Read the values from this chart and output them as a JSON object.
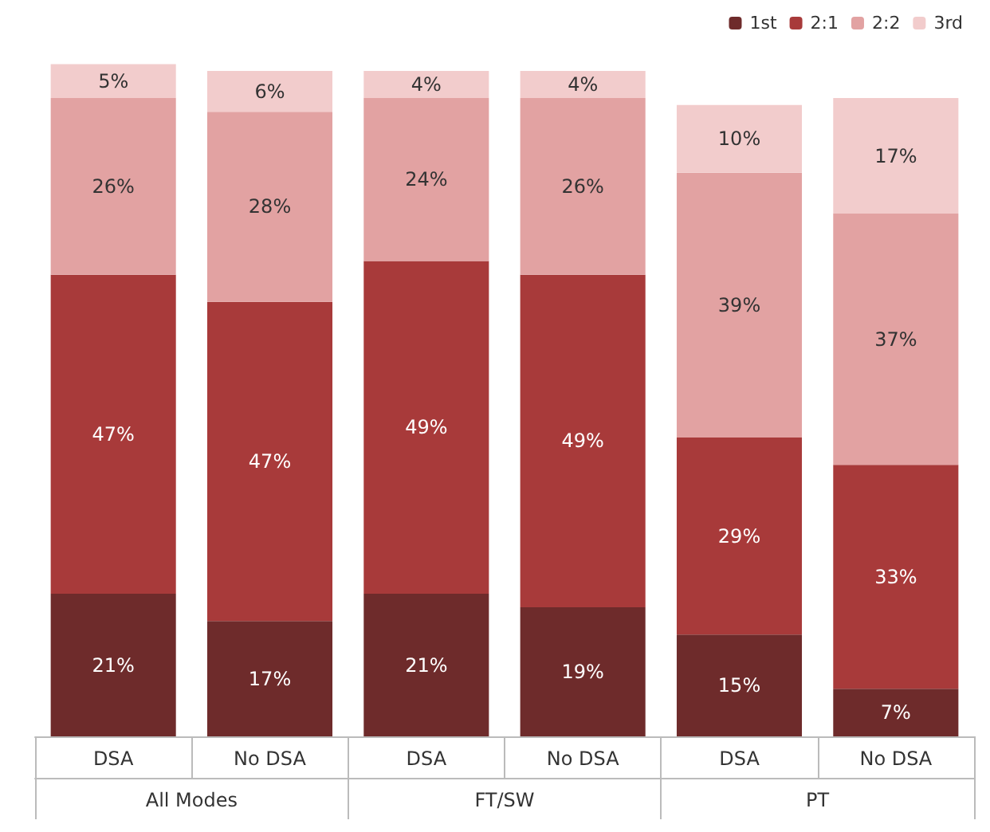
{
  "chart_data": {
    "type": "bar",
    "stacked": true,
    "legend": "top right",
    "categories": [
      "DSA",
      "No DSA",
      "DSA",
      "No DSA",
      "DSA",
      "No DSA"
    ],
    "annotations": [
      "All Modes",
      "FT/SW",
      "PT"
    ],
    "series": [
      {
        "name": "1st",
        "color": "#6e2b2b",
        "values": [
          21,
          17,
          21,
          19,
          15,
          7
        ],
        "value_labels": [
          "21%",
          "17%",
          "21%",
          "19%",
          "15%",
          "7%"
        ]
      },
      {
        "name": "2:1",
        "color": "#a83a3a",
        "values": [
          47,
          47,
          49,
          49,
          29,
          33
        ],
        "value_labels": [
          "47%",
          "47%",
          "49%",
          "49%",
          "29%",
          "33%"
        ]
      },
      {
        "name": "2:2",
        "color": "#e2a2a2",
        "values": [
          26,
          28,
          24,
          26,
          39,
          37
        ],
        "value_labels": [
          "26%",
          "28%",
          "24%",
          "26%",
          "39%",
          "37%"
        ]
      },
      {
        "name": "3rd",
        "color": "#f2cccc",
        "values": [
          5,
          6,
          4,
          4,
          10,
          17
        ],
        "value_labels": [
          "5%",
          "6%",
          "4%",
          "4%",
          "10%",
          "17%"
        ]
      }
    ]
  }
}
